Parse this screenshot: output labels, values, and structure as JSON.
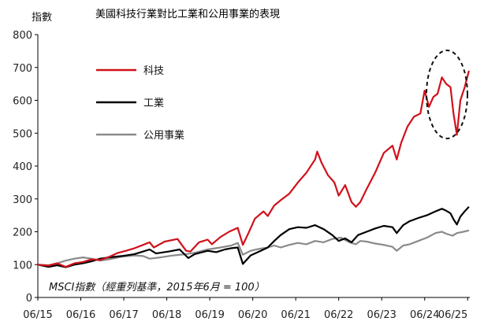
{
  "chart_data": {
    "type": "line",
    "title": "美國科技行業對比工業和公用事業的表現",
    "ylabel": "指數",
    "xlabel": "",
    "note": "MSCI指數（經重列基準，2015年6月 = 100）",
    "ylim": [
      0,
      800
    ],
    "yticks": [
      0,
      100,
      200,
      300,
      400,
      500,
      600,
      700,
      800
    ],
    "xlim": [
      2015.45,
      2025.5
    ],
    "xtick_positions": [
      2015.45,
      2016.45,
      2017.45,
      2018.45,
      2019.45,
      2020.45,
      2021.45,
      2022.45,
      2023.45,
      2024.45,
      2025.45
    ],
    "xtick_labels": [
      "06/15",
      "06/16",
      "06/17",
      "06/18",
      "06/19",
      "06/20",
      "06/21",
      "06/22",
      "06/23",
      "06/24",
      "06/25"
    ],
    "legend_position": "top-left",
    "highlight": "dashed ellipse around the 2024–2025 technology peak and drop",
    "series": [
      {
        "name": "科技",
        "color": "#d0111b",
        "points": [
          [
            2015.45,
            100
          ],
          [
            2015.7,
            97
          ],
          [
            2015.9,
            104
          ],
          [
            2016.1,
            93
          ],
          [
            2016.3,
            104
          ],
          [
            2016.5,
            108
          ],
          [
            2016.7,
            116
          ],
          [
            2016.9,
            114
          ],
          [
            2017.1,
            123
          ],
          [
            2017.3,
            135
          ],
          [
            2017.5,
            142
          ],
          [
            2017.7,
            150
          ],
          [
            2017.9,
            160
          ],
          [
            2018.05,
            168
          ],
          [
            2018.15,
            152
          ],
          [
            2018.4,
            170
          ],
          [
            2018.7,
            178
          ],
          [
            2018.9,
            142
          ],
          [
            2019.0,
            140
          ],
          [
            2019.2,
            168
          ],
          [
            2019.4,
            176
          ],
          [
            2019.5,
            162
          ],
          [
            2019.7,
            184
          ],
          [
            2019.9,
            200
          ],
          [
            2020.1,
            212
          ],
          [
            2020.22,
            160
          ],
          [
            2020.35,
            196
          ],
          [
            2020.5,
            240
          ],
          [
            2020.7,
            262
          ],
          [
            2020.8,
            248
          ],
          [
            2020.95,
            280
          ],
          [
            2021.1,
            296
          ],
          [
            2021.3,
            316
          ],
          [
            2021.5,
            350
          ],
          [
            2021.7,
            380
          ],
          [
            2021.9,
            420
          ],
          [
            2021.95,
            444
          ],
          [
            2022.05,
            410
          ],
          [
            2022.2,
            372
          ],
          [
            2022.35,
            350
          ],
          [
            2022.45,
            310
          ],
          [
            2022.6,
            342
          ],
          [
            2022.75,
            290
          ],
          [
            2022.85,
            276
          ],
          [
            2022.95,
            290
          ],
          [
            2023.1,
            330
          ],
          [
            2023.3,
            380
          ],
          [
            2023.5,
            440
          ],
          [
            2023.7,
            462
          ],
          [
            2023.8,
            420
          ],
          [
            2023.9,
            470
          ],
          [
            2024.05,
            520
          ],
          [
            2024.2,
            550
          ],
          [
            2024.35,
            560
          ],
          [
            2024.45,
            630
          ],
          [
            2024.55,
            580
          ],
          [
            2024.65,
            610
          ],
          [
            2024.75,
            620
          ],
          [
            2024.85,
            670
          ],
          [
            2024.95,
            650
          ],
          [
            2025.05,
            640
          ],
          [
            2025.12,
            560
          ],
          [
            2025.2,
            495
          ],
          [
            2025.28,
            600
          ],
          [
            2025.38,
            640
          ],
          [
            2025.48,
            690
          ]
        ]
      },
      {
        "name": "工業",
        "color": "#000000",
        "points": [
          [
            2015.45,
            100
          ],
          [
            2015.7,
            93
          ],
          [
            2015.9,
            98
          ],
          [
            2016.1,
            92
          ],
          [
            2016.3,
            100
          ],
          [
            2016.5,
            104
          ],
          [
            2016.7,
            110
          ],
          [
            2016.9,
            118
          ],
          [
            2017.1,
            122
          ],
          [
            2017.4,
            126
          ],
          [
            2017.7,
            132
          ],
          [
            2017.9,
            140
          ],
          [
            2018.05,
            146
          ],
          [
            2018.2,
            134
          ],
          [
            2018.5,
            140
          ],
          [
            2018.75,
            146
          ],
          [
            2018.95,
            120
          ],
          [
            2019.1,
            132
          ],
          [
            2019.4,
            142
          ],
          [
            2019.6,
            138
          ],
          [
            2019.8,
            146
          ],
          [
            2019.95,
            150
          ],
          [
            2020.1,
            152
          ],
          [
            2020.22,
            102
          ],
          [
            2020.4,
            128
          ],
          [
            2020.6,
            140
          ],
          [
            2020.8,
            152
          ],
          [
            2020.95,
            172
          ],
          [
            2021.1,
            190
          ],
          [
            2021.3,
            208
          ],
          [
            2021.5,
            214
          ],
          [
            2021.7,
            212
          ],
          [
            2021.9,
            220
          ],
          [
            2022.1,
            208
          ],
          [
            2022.3,
            190
          ],
          [
            2022.45,
            172
          ],
          [
            2022.6,
            180
          ],
          [
            2022.75,
            168
          ],
          [
            2022.9,
            190
          ],
          [
            2023.1,
            200
          ],
          [
            2023.3,
            210
          ],
          [
            2023.5,
            218
          ],
          [
            2023.7,
            214
          ],
          [
            2023.8,
            196
          ],
          [
            2023.95,
            220
          ],
          [
            2024.1,
            232
          ],
          [
            2024.3,
            242
          ],
          [
            2024.5,
            250
          ],
          [
            2024.7,
            262
          ],
          [
            2024.85,
            270
          ],
          [
            2024.95,
            264
          ],
          [
            2025.05,
            256
          ],
          [
            2025.12,
            238
          ],
          [
            2025.2,
            222
          ],
          [
            2025.28,
            246
          ],
          [
            2025.38,
            262
          ],
          [
            2025.48,
            276
          ]
        ]
      },
      {
        "name": "公用事業",
        "color": "#8a8a8a",
        "points": [
          [
            2015.45,
            100
          ],
          [
            2015.7,
            98
          ],
          [
            2015.9,
            104
          ],
          [
            2016.1,
            112
          ],
          [
            2016.3,
            118
          ],
          [
            2016.5,
            122
          ],
          [
            2016.7,
            118
          ],
          [
            2016.9,
            112
          ],
          [
            2017.1,
            116
          ],
          [
            2017.4,
            124
          ],
          [
            2017.7,
            128
          ],
          [
            2017.9,
            126
          ],
          [
            2018.05,
            118
          ],
          [
            2018.3,
            122
          ],
          [
            2018.6,
            128
          ],
          [
            2018.9,
            132
          ],
          [
            2019.1,
            136
          ],
          [
            2019.4,
            146
          ],
          [
            2019.7,
            152
          ],
          [
            2019.95,
            158
          ],
          [
            2020.1,
            166
          ],
          [
            2020.22,
            130
          ],
          [
            2020.4,
            142
          ],
          [
            2020.6,
            148
          ],
          [
            2020.8,
            152
          ],
          [
            2020.95,
            158
          ],
          [
            2021.1,
            152
          ],
          [
            2021.3,
            160
          ],
          [
            2021.5,
            166
          ],
          [
            2021.7,
            162
          ],
          [
            2021.9,
            172
          ],
          [
            2022.1,
            168
          ],
          [
            2022.3,
            178
          ],
          [
            2022.5,
            182
          ],
          [
            2022.7,
            168
          ],
          [
            2022.85,
            162
          ],
          [
            2022.95,
            172
          ],
          [
            2023.1,
            170
          ],
          [
            2023.3,
            164
          ],
          [
            2023.5,
            160
          ],
          [
            2023.7,
            154
          ],
          [
            2023.8,
            142
          ],
          [
            2023.95,
            158
          ],
          [
            2024.1,
            162
          ],
          [
            2024.3,
            172
          ],
          [
            2024.5,
            182
          ],
          [
            2024.7,
            196
          ],
          [
            2024.85,
            200
          ],
          [
            2024.95,
            194
          ],
          [
            2025.1,
            188
          ],
          [
            2025.2,
            196
          ],
          [
            2025.35,
            200
          ],
          [
            2025.48,
            204
          ]
        ]
      }
    ]
  },
  "colors": {
    "highlight_ellipse": "#111111",
    "axis": "#000000"
  }
}
